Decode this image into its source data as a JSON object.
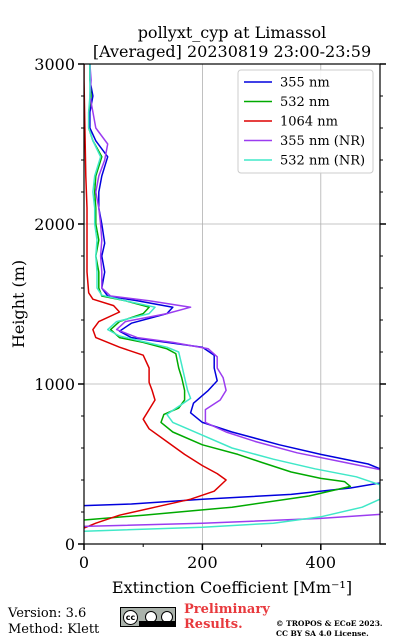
{
  "chart_data": {
    "type": "line",
    "title": "pollyxt_cyp at Limassol",
    "subtitle": "[Averaged] 20230819 23:00-23:59",
    "xlabel": "Extinction Coefficient [Mm⁻¹]",
    "ylabel": "Height (m)",
    "xlim": [
      0,
      500
    ],
    "ylim": [
      0,
      3000
    ],
    "xticks": [
      "0",
      "200",
      "400"
    ],
    "yticks": [
      "0",
      "1000",
      "2000",
      "3000"
    ],
    "grid": true,
    "legend_position": "top-right",
    "series": [
      {
        "name": "355 nm",
        "color": "#0000dd",
        "points": [
          [
            0,
            240
          ],
          [
            80,
            250
          ],
          [
            200,
            280
          ],
          [
            350,
            310
          ],
          [
            450,
            350
          ],
          [
            530,
            400
          ],
          [
            520,
            440
          ],
          [
            480,
            500
          ],
          [
            400,
            560
          ],
          [
            330,
            620
          ],
          [
            250,
            700
          ],
          [
            200,
            760
          ],
          [
            180,
            820
          ],
          [
            185,
            880
          ],
          [
            210,
            960
          ],
          [
            225,
            1020
          ],
          [
            220,
            1100
          ],
          [
            220,
            1180
          ],
          [
            200,
            1230
          ],
          [
            140,
            1260
          ],
          [
            80,
            1290
          ],
          [
            60,
            1330
          ],
          [
            80,
            1380
          ],
          [
            140,
            1440
          ],
          [
            150,
            1480
          ],
          [
            90,
            1520
          ],
          [
            40,
            1550
          ],
          [
            30,
            1600
          ],
          [
            35,
            1700
          ],
          [
            30,
            1800
          ],
          [
            35,
            1880
          ],
          [
            30,
            2000
          ],
          [
            25,
            2100
          ],
          [
            25,
            2200
          ],
          [
            30,
            2300
          ],
          [
            40,
            2420
          ],
          [
            20,
            2520
          ],
          [
            10,
            2600
          ],
          [
            10,
            2700
          ],
          [
            15,
            2800
          ],
          [
            10,
            2900
          ],
          [
            10,
            3000
          ]
        ]
      },
      {
        "name": "532 nm",
        "color": "#00aa00",
        "points": [
          [
            0,
            150
          ],
          [
            100,
            180
          ],
          [
            250,
            230
          ],
          [
            380,
            300
          ],
          [
            450,
            360
          ],
          [
            440,
            390
          ],
          [
            400,
            410
          ],
          [
            350,
            450
          ],
          [
            300,
            510
          ],
          [
            260,
            560
          ],
          [
            200,
            620
          ],
          [
            150,
            700
          ],
          [
            130,
            760
          ],
          [
            135,
            810
          ],
          [
            160,
            850
          ],
          [
            170,
            900
          ],
          [
            170,
            960
          ],
          [
            165,
            1040
          ],
          [
            160,
            1100
          ],
          [
            155,
            1190
          ],
          [
            140,
            1220
          ],
          [
            100,
            1260
          ],
          [
            60,
            1290
          ],
          [
            45,
            1340
          ],
          [
            60,
            1390
          ],
          [
            100,
            1440
          ],
          [
            110,
            1480
          ],
          [
            70,
            1520
          ],
          [
            30,
            1550
          ],
          [
            25,
            1600
          ],
          [
            25,
            1700
          ],
          [
            20,
            1800
          ],
          [
            25,
            1900
          ],
          [
            20,
            2000
          ],
          [
            20,
            2100
          ],
          [
            18,
            2200
          ],
          [
            20,
            2300
          ],
          [
            30,
            2420
          ],
          [
            15,
            2520
          ],
          [
            8,
            2600
          ],
          [
            8,
            2700
          ],
          [
            12,
            2800
          ],
          [
            10,
            2900
          ],
          [
            10,
            3000
          ]
        ]
      },
      {
        "name": "1064 nm",
        "color": "#dd0000",
        "points": [
          [
            0,
            100
          ],
          [
            20,
            130
          ],
          [
            60,
            180
          ],
          [
            120,
            230
          ],
          [
            180,
            280
          ],
          [
            220,
            330
          ],
          [
            240,
            400
          ],
          [
            225,
            440
          ],
          [
            200,
            490
          ],
          [
            170,
            560
          ],
          [
            140,
            640
          ],
          [
            110,
            720
          ],
          [
            100,
            780
          ],
          [
            110,
            840
          ],
          [
            120,
            900
          ],
          [
            115,
            960
          ],
          [
            110,
            1010
          ],
          [
            110,
            1100
          ],
          [
            100,
            1180
          ],
          [
            60,
            1230
          ],
          [
            20,
            1290
          ],
          [
            15,
            1340
          ],
          [
            25,
            1390
          ],
          [
            60,
            1450
          ],
          [
            50,
            1490
          ],
          [
            15,
            1530
          ],
          [
            8,
            1570
          ],
          [
            5,
            1700
          ],
          [
            5,
            1900
          ],
          [
            5,
            2100
          ],
          [
            3,
            2300
          ],
          [
            2,
            2500
          ],
          [
            1,
            2700
          ],
          [
            0,
            2900
          ],
          [
            0,
            3000
          ]
        ]
      },
      {
        "name": "355 nm (NR)",
        "color": "#9b3cf0",
        "points": [
          [
            0,
            110
          ],
          [
            200,
            130
          ],
          [
            400,
            160
          ],
          [
            520,
            190
          ],
          [
            520,
            450
          ],
          [
            440,
            510
          ],
          [
            360,
            570
          ],
          [
            290,
            640
          ],
          [
            240,
            700
          ],
          [
            205,
            760
          ],
          [
            205,
            840
          ],
          [
            230,
            900
          ],
          [
            240,
            960
          ],
          [
            235,
            1040
          ],
          [
            225,
            1100
          ],
          [
            225,
            1170
          ],
          [
            210,
            1220
          ],
          [
            150,
            1260
          ],
          [
            90,
            1290
          ],
          [
            55,
            1340
          ],
          [
            70,
            1390
          ],
          [
            140,
            1440
          ],
          [
            180,
            1480
          ],
          [
            110,
            1520
          ],
          [
            45,
            1550
          ],
          [
            30,
            1600
          ],
          [
            30,
            1700
          ],
          [
            28,
            1800
          ],
          [
            30,
            1900
          ],
          [
            28,
            2000
          ],
          [
            25,
            2100
          ],
          [
            20,
            2200
          ],
          [
            25,
            2300
          ],
          [
            35,
            2400
          ],
          [
            40,
            2500
          ],
          [
            20,
            2600
          ],
          [
            15,
            2700
          ],
          [
            10,
            2800
          ],
          [
            12,
            2900
          ],
          [
            10,
            3000
          ]
        ]
      },
      {
        "name": "532 nm (NR)",
        "color": "#40e8c8",
        "points": [
          [
            0,
            80
          ],
          [
            200,
            105
          ],
          [
            320,
            130
          ],
          [
            400,
            170
          ],
          [
            470,
            230
          ],
          [
            500,
            280
          ],
          [
            500,
            370
          ],
          [
            460,
            420
          ],
          [
            390,
            470
          ],
          [
            320,
            530
          ],
          [
            250,
            600
          ],
          [
            200,
            680
          ],
          [
            150,
            760
          ],
          [
            140,
            810
          ],
          [
            160,
            860
          ],
          [
            180,
            910
          ],
          [
            175,
            960
          ],
          [
            170,
            1040
          ],
          [
            165,
            1120
          ],
          [
            160,
            1200
          ],
          [
            140,
            1230
          ],
          [
            100,
            1265
          ],
          [
            60,
            1300
          ],
          [
            40,
            1340
          ],
          [
            55,
            1390
          ],
          [
            110,
            1440
          ],
          [
            120,
            1480
          ],
          [
            70,
            1520
          ],
          [
            30,
            1555
          ],
          [
            22,
            1600
          ],
          [
            22,
            1700
          ],
          [
            20,
            1800
          ],
          [
            22,
            1900
          ],
          [
            18,
            2000
          ],
          [
            18,
            2100
          ],
          [
            15,
            2200
          ],
          [
            18,
            2300
          ],
          [
            28,
            2420
          ],
          [
            15,
            2520
          ],
          [
            8,
            2600
          ],
          [
            8,
            2700
          ],
          [
            10,
            2800
          ],
          [
            10,
            2900
          ],
          [
            10,
            3000
          ]
        ]
      }
    ]
  },
  "footer": {
    "version": "Version: 3.6",
    "method": "Method: Klett",
    "preliminary_line1": "Preliminary",
    "preliminary_line2": "Results.",
    "copyright_line1": "© TROPOS & ECoE 2023.",
    "copyright_line2": "CC BY SA 4.0 License."
  }
}
